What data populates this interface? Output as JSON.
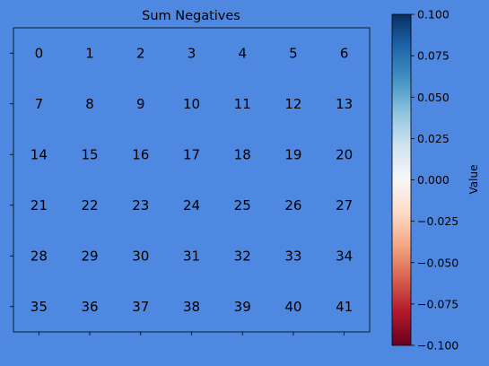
{
  "chart_data": {
    "type": "heatmap",
    "title": "Sum Negatives",
    "rows": 6,
    "cols": 7,
    "values": [
      [
        0,
        1,
        2,
        3,
        4,
        5,
        6
      ],
      [
        7,
        8,
        9,
        10,
        11,
        12,
        13
      ],
      [
        14,
        15,
        16,
        17,
        18,
        19,
        20
      ],
      [
        21,
        22,
        23,
        24,
        25,
        26,
        27
      ],
      [
        28,
        29,
        30,
        31,
        32,
        33,
        34
      ],
      [
        35,
        36,
        37,
        38,
        39,
        40,
        41
      ]
    ],
    "cell_fill": "none",
    "xlabel": "",
    "ylabel": "",
    "x_tick_labels": [],
    "y_tick_labels": [],
    "colorbar": {
      "label": "Value",
      "colormap": "RdBu",
      "vmin": -0.1,
      "vmax": 0.1,
      "ticks": [
        0.1,
        0.075,
        0.05,
        0.025,
        0.0,
        -0.025,
        -0.05,
        -0.075,
        -0.1
      ],
      "tick_labels": [
        "0.100",
        "0.075",
        "0.050",
        "0.025",
        "0.000",
        "−0.025",
        "−0.050",
        "−0.075",
        "−0.100"
      ]
    }
  },
  "colors": {
    "background": "#4f88e1",
    "text": "#000000",
    "axis": "#000000"
  }
}
